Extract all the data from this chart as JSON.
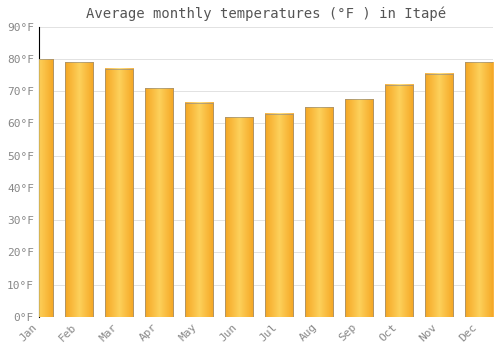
{
  "title": "Average monthly temperatures (°F ) in Itapé",
  "months": [
    "Jan",
    "Feb",
    "Mar",
    "Apr",
    "May",
    "Jun",
    "Jul",
    "Aug",
    "Sep",
    "Oct",
    "Nov",
    "Dec"
  ],
  "values": [
    80,
    79,
    77,
    71,
    66.5,
    62,
    63,
    65,
    67.5,
    72,
    75.5,
    79
  ],
  "bar_color_outer": "#F5A623",
  "bar_color_inner": "#FFD966",
  "bar_edge_color": "#888888",
  "background_color": "#FFFFFF",
  "grid_color": "#DDDDDD",
  "text_color": "#888888",
  "title_color": "#555555",
  "ylim": [
    0,
    90
  ],
  "yticks": [
    0,
    10,
    20,
    30,
    40,
    50,
    60,
    70,
    80,
    90
  ],
  "title_fontsize": 10,
  "tick_fontsize": 8,
  "figsize": [
    5.0,
    3.5
  ],
  "dpi": 100,
  "bar_width": 0.7
}
